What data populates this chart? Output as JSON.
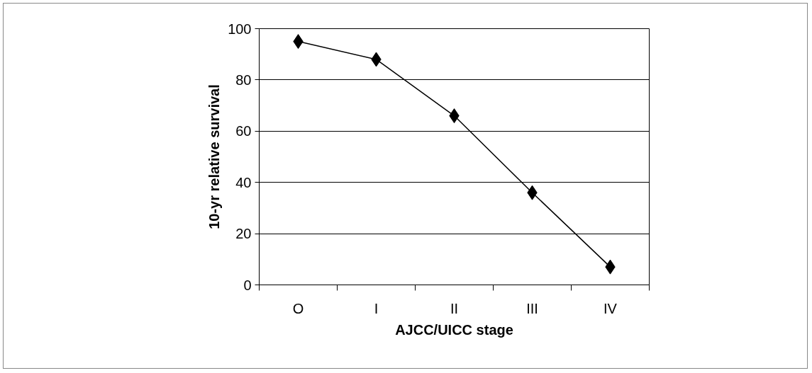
{
  "chart_data": {
    "type": "line",
    "xlabel": "AJCC/UICC stage",
    "ylabel": "10-yr relative survival",
    "categories": [
      "O",
      "I",
      "II",
      "III",
      "IV"
    ],
    "series": [
      {
        "color": "#000000",
        "values": [
          95,
          88,
          66,
          36,
          7
        ]
      }
    ],
    "ylim": [
      0,
      100
    ],
    "yticks": [
      0,
      20,
      40,
      60,
      80,
      100
    ],
    "grid": "y",
    "marker": "diamond",
    "line_style": "solid"
  }
}
